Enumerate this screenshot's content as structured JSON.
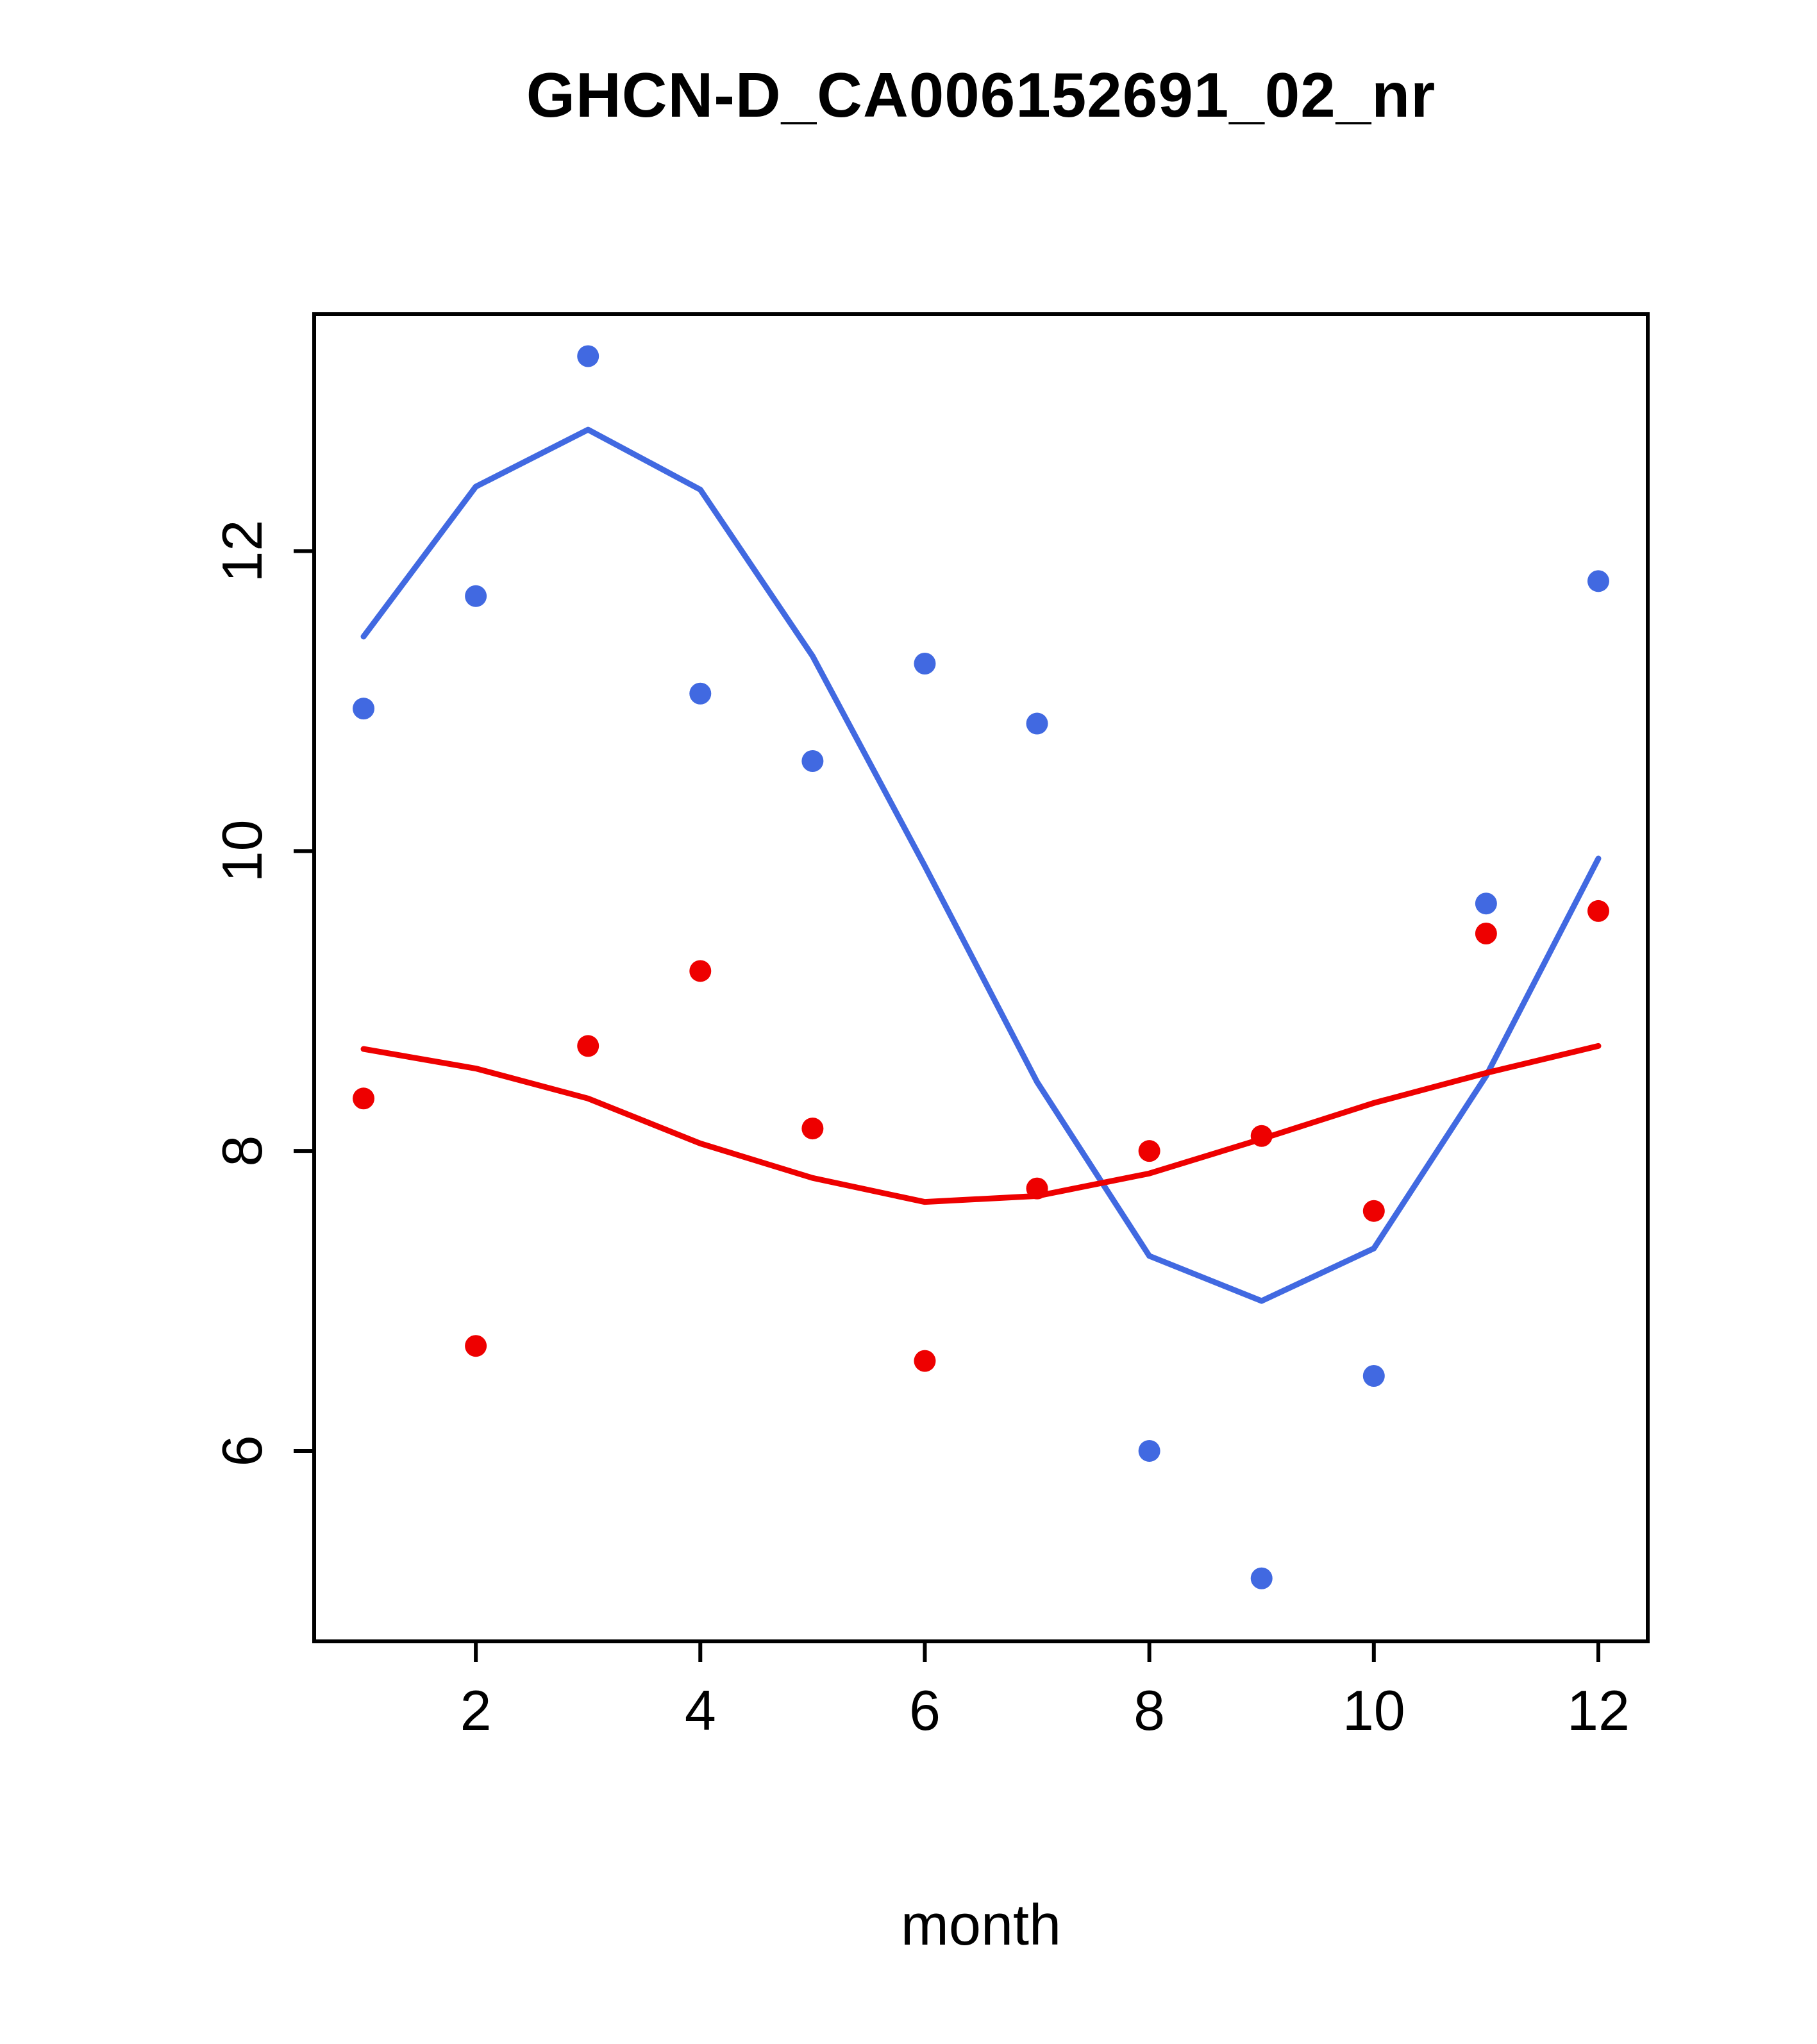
{
  "chart_data": {
    "type": "scatter",
    "title": "GHCN-D_CA006152691_02_nr",
    "xlabel": "month",
    "ylabel": "",
    "x": [
      1,
      2,
      3,
      4,
      5,
      6,
      7,
      8,
      9,
      10,
      11,
      12
    ],
    "xlim": [
      0.56,
      12.44
    ],
    "ylim": [
      4.73,
      13.58
    ],
    "x_ticks": [
      2,
      4,
      6,
      8,
      10,
      12
    ],
    "y_ticks": [
      6,
      8,
      10,
      12
    ],
    "grid": false,
    "legend": "none",
    "colors": {
      "blue": "#4169e1",
      "red": "#ee0000",
      "axis": "#000000"
    },
    "series": [
      {
        "name": "blue-points",
        "kind": "points",
        "color": "#4169e1",
        "values": [
          10.95,
          11.7,
          13.3,
          11.05,
          10.6,
          11.25,
          10.85,
          6.0,
          5.15,
          6.5,
          9.65,
          11.8
        ]
      },
      {
        "name": "blue-smooth-line",
        "kind": "line",
        "color": "#4169e1",
        "values": [
          11.43,
          12.43,
          12.81,
          12.41,
          11.3,
          9.9,
          8.46,
          7.3,
          7.0,
          7.35,
          8.5,
          9.95
        ]
      },
      {
        "name": "red-points",
        "kind": "points",
        "color": "#ee0000",
        "values": [
          8.35,
          6.7,
          8.7,
          9.2,
          8.15,
          6.6,
          7.75,
          8.0,
          8.1,
          7.6,
          9.45,
          9.6
        ]
      },
      {
        "name": "red-smooth-line",
        "kind": "line",
        "color": "#ee0000",
        "values": [
          8.68,
          8.55,
          8.35,
          8.05,
          7.82,
          7.66,
          7.7,
          7.85,
          8.08,
          8.32,
          8.52,
          8.7
        ]
      }
    ]
  }
}
